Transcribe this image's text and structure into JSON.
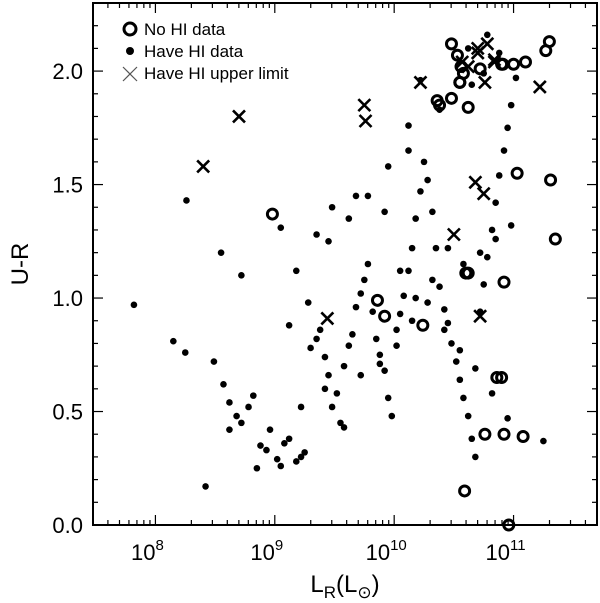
{
  "chart_data": {
    "type": "scatter",
    "title": "",
    "xlabel": "L_R(L_⊙)",
    "ylabel": "U-R",
    "xscale": "log",
    "xlim": [
      30000000.0,
      500000000000.0
    ],
    "ylim": [
      0.0,
      2.3
    ],
    "x_ticks": [
      "10^8",
      "10^9",
      "10^10",
      "10^11"
    ],
    "y_ticks": [
      "0.0",
      "0.5",
      "1.0",
      "1.5",
      "2.0"
    ],
    "grid": false,
    "legend_position": "upper-left",
    "legend": [
      {
        "label": "No HI data",
        "marker": "open-circle"
      },
      {
        "label": "Have HI data",
        "marker": "filled-dot"
      },
      {
        "label": "Have HI upper limit",
        "marker": "x"
      }
    ],
    "series": [
      {
        "name": "No HI data",
        "marker": "open-circle",
        "log_x": [
          8.98,
          10.48,
          10.53,
          10.56,
          10.58,
          10.55,
          10.48,
          10.62,
          10.38,
          10.6,
          10.92,
          11.03,
          10.86,
          10.9,
          11.0,
          11.27,
          11.3,
          10.55,
          10.91,
          11.1,
          11.31,
          10.92,
          11.35,
          10.59,
          10.36,
          9.86,
          9.92,
          10.24,
          10.76,
          10.9,
          10.72,
          11.08,
          10.62,
          10.96
        ],
        "y": [
          1.37,
          2.12,
          2.07,
          2.02,
          1.99,
          1.95,
          1.88,
          1.84,
          1.85,
          1.11,
          1.07,
          1.55,
          0.65,
          2.03,
          2.03,
          2.09,
          2.13,
          1.95,
          2.03,
          2.04,
          1.52,
          0.4,
          1.26,
          0.15,
          1.87,
          0.99,
          0.92,
          0.88,
          0.4,
          0.65,
          2.01,
          0.39,
          1.11,
          0.0
        ]
      },
      {
        "name": "Have HI data",
        "marker": "filled-dot",
        "log_x": [
          7.82,
          8.15,
          8.25,
          8.49,
          8.57,
          8.62,
          8.68,
          8.72,
          8.78,
          8.82,
          8.88,
          8.93,
          8.96,
          9.02,
          9.05,
          9.08,
          9.12,
          9.18,
          9.22,
          9.25,
          9.3,
          9.35,
          9.38,
          9.42,
          9.45,
          9.48,
          9.52,
          9.55,
          9.58,
          9.62,
          9.65,
          9.68,
          9.72,
          9.75,
          9.78,
          9.82,
          9.85,
          9.88,
          9.92,
          9.95,
          9.98,
          10.02,
          10.05,
          10.08,
          10.12,
          10.15,
          10.18,
          10.22,
          10.25,
          10.28,
          10.32,
          10.35,
          10.38,
          10.42,
          10.45,
          10.48,
          10.52,
          10.55,
          10.58,
          10.62,
          10.65,
          10.68,
          10.72,
          10.75,
          10.78,
          10.82,
          10.85,
          10.88,
          10.92,
          10.95,
          10.98,
          11.02,
          11.25,
          8.26,
          8.55,
          8.72,
          9.05,
          9.18,
          9.35,
          9.48,
          9.62,
          9.78,
          9.92,
          10.05,
          10.18,
          10.32,
          10.45,
          10.58,
          10.72,
          10.85,
          10.98,
          9.22,
          9.42,
          9.58,
          9.72,
          9.88,
          10.02,
          10.15,
          10.28,
          10.42,
          10.55,
          10.68,
          10.82,
          10.95,
          8.42,
          8.62,
          8.85,
          9.12,
          9.28,
          9.45,
          9.68,
          9.95,
          10.12,
          10.38,
          10.65,
          10.78,
          10.88,
          10.12,
          10.22,
          10.62,
          10.75
        ],
        "y": [
          0.97,
          0.81,
          0.76,
          0.72,
          0.62,
          0.54,
          0.48,
          0.45,
          0.52,
          0.57,
          0.35,
          0.33,
          0.42,
          0.29,
          0.26,
          0.36,
          0.38,
          0.28,
          0.3,
          0.32,
          0.78,
          0.82,
          0.86,
          0.74,
          0.66,
          0.52,
          0.58,
          0.45,
          0.7,
          0.79,
          0.84,
          0.96,
          1.02,
          1.08,
          1.15,
          0.94,
          0.82,
          0.75,
          0.68,
          0.56,
          0.48,
          0.86,
          0.93,
          1.01,
          1.12,
          1.22,
          1.35,
          1.47,
          1.6,
          1.52,
          1.38,
          1.22,
          1.05,
          0.95,
          0.89,
          0.8,
          0.72,
          0.64,
          0.56,
          0.48,
          0.38,
          0.3,
          0.94,
          1.06,
          1.18,
          1.3,
          1.42,
          1.54,
          1.65,
          1.75,
          1.85,
          1.97,
          0.37,
          1.43,
          1.2,
          1.1,
          1.31,
          1.12,
          1.28,
          1.4,
          1.35,
          1.45,
          1.38,
          1.12,
          1.0,
          1.08,
          1.22,
          1.15,
          1.2,
          1.26,
          1.32,
          0.52,
          0.6,
          0.43,
          0.66,
          0.71,
          0.79,
          0.9,
          0.98,
          0.86,
          0.77,
          0.69,
          0.58,
          0.47,
          0.17,
          0.42,
          0.25,
          0.88,
          0.98,
          1.25,
          1.45,
          1.58,
          1.65,
          1.83,
          1.94,
          2.16,
          2.08,
          1.76,
          1.96,
          2.1,
          1.99
        ]
      },
      {
        "name": "Have HI upper limit",
        "marker": "x",
        "log_x": [
          8.4,
          8.7,
          9.75,
          9.76,
          10.22,
          10.5,
          10.62,
          10.7,
          10.78,
          10.76,
          10.84,
          10.68,
          10.75,
          11.22,
          10.57,
          10.72,
          9.44,
          10.7,
          10.84
        ],
        "y": [
          1.58,
          1.8,
          1.85,
          1.78,
          1.95,
          1.28,
          2.02,
          2.1,
          2.12,
          1.95,
          2.05,
          1.51,
          1.46,
          1.93,
          2.04,
          0.92,
          0.91,
          2.08,
          2.04
        ]
      }
    ]
  }
}
